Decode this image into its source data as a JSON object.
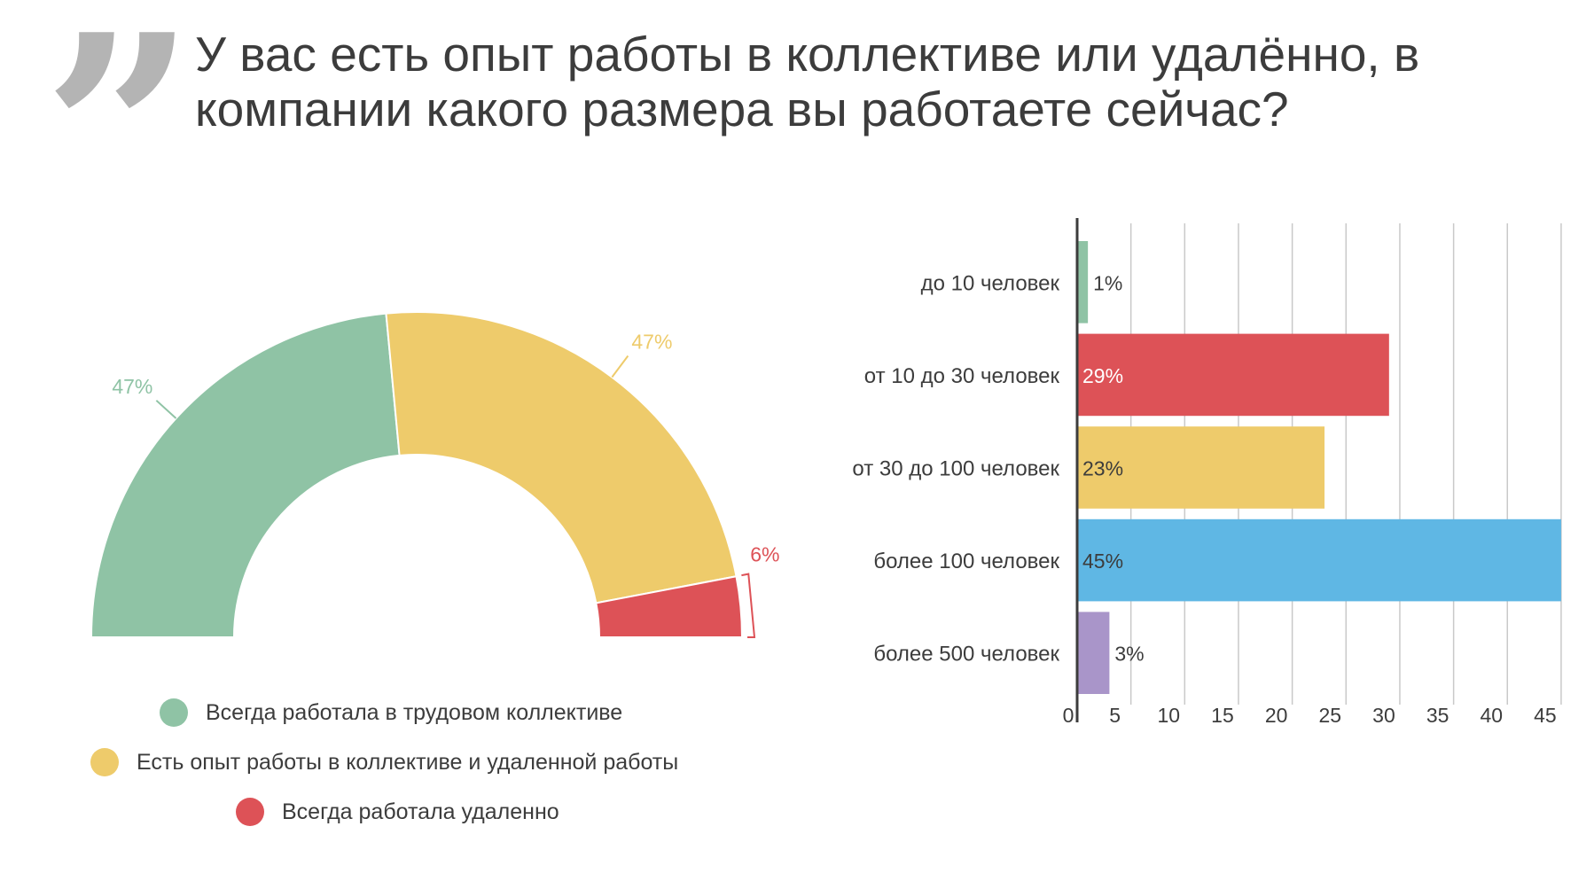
{
  "header": {
    "quote_glyph": "”",
    "title": "У вас есть опыт работы в коллективе или удалённо, в компании какого размера вы работаете сейчас?"
  },
  "chart_data": [
    {
      "type": "pie",
      "variant": "half-donut",
      "title": "",
      "slices": [
        {
          "label": "Всегда работала в трудовом коллективе",
          "value": 47,
          "display": "47%",
          "color": "#8fc3a5"
        },
        {
          "label": "Есть опыт работы в коллективе и удаленной работы",
          "value": 47,
          "display": "47%",
          "color": "#eecb6b"
        },
        {
          "label": "Всегда работала удаленно",
          "value": 6,
          "display": "6%",
          "color": "#dd5257"
        }
      ],
      "legend_position": "bottom"
    },
    {
      "type": "bar",
      "orientation": "horizontal",
      "categories": [
        "до 10 человек",
        "от 10 до 30 человек",
        "от 30 до 100 человек",
        "более 100 человек",
        "более 500 человек"
      ],
      "values": [
        1,
        29,
        23,
        45,
        3
      ],
      "value_labels": [
        "1%",
        "29%",
        "23%",
        "45%",
        "3%"
      ],
      "colors": [
        "#8fc3a5",
        "#dd5257",
        "#eecb6b",
        "#5fb7e4",
        "#a995c9"
      ],
      "xlim": [
        0,
        45
      ],
      "xticks": [
        "0",
        "5",
        "10",
        "15",
        "20",
        "25",
        "30",
        "35",
        "40",
        "45"
      ],
      "grid": true,
      "xlabel": "",
      "ylabel": ""
    }
  ]
}
